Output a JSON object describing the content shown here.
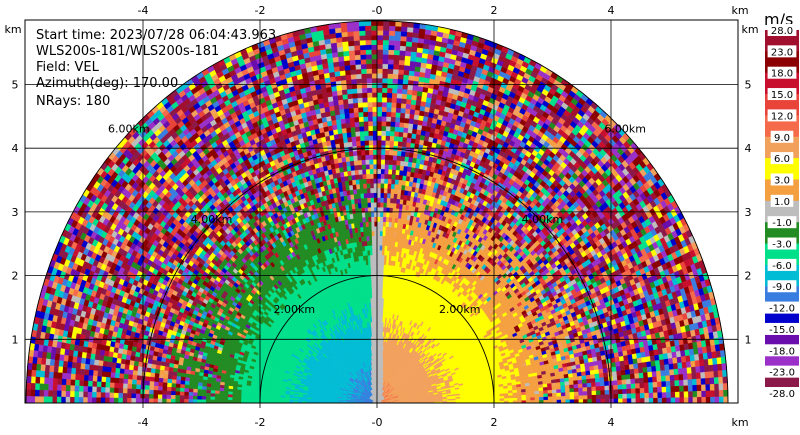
{
  "chart_data": {
    "type": "heatmap",
    "subtype": "radar RHI / sector scan",
    "info": {
      "start_time": "Start time: 2023/07/28 06:04:43.963",
      "site": "WLS200s-181/WLS200s-181",
      "field": "Field: VEL",
      "azimuth": "Azimuth(deg): 170.00",
      "nrays": "NRays: 180"
    },
    "axes": {
      "x_unit": "km",
      "y_unit": "km",
      "xlim": [
        -6,
        6
      ],
      "ylim": [
        0,
        6
      ],
      "x_ticks": [
        -4,
        -2,
        0,
        2,
        4
      ],
      "x_tick_labels": [
        "-4",
        "-2",
        "-0",
        "2",
        "4"
      ],
      "y_ticks": [
        1,
        2,
        3,
        4,
        5
      ],
      "y_tick_labels": [
        "1",
        "2",
        "3",
        "4",
        "5"
      ],
      "grid": true
    },
    "max_range_km": 6.0,
    "range_rings": [
      {
        "range_km": 2,
        "label": "2.00km"
      },
      {
        "range_km": 4,
        "label": "4.00km"
      },
      {
        "range_km": 6,
        "label": "6.00km"
      }
    ],
    "colorbar": {
      "unit": "m/s",
      "boundaries": [
        28.0,
        23.0,
        18.0,
        15.0,
        12.0,
        9.0,
        6.0,
        3.0,
        1.0,
        -1.0,
        -3.0,
        -6.0,
        -9.0,
        -12.0,
        -15.0,
        -18.0,
        -23.0,
        -28.0
      ],
      "labels": [
        "28.0",
        "23.0",
        "18.0",
        "15.0",
        "12.0",
        "9.0",
        "6.0",
        "3.0",
        "1.0",
        "-1.0",
        "-3.0",
        "-6.0",
        "-9.0",
        "-12.0",
        "-15.0",
        "-18.0",
        "-23.0",
        "-28.0"
      ],
      "colors": [
        "#a0102e",
        "#8b0000",
        "#c8102e",
        "#e8443a",
        "#f56a4a",
        "#f2a15c",
        "#ffff00",
        "#f5a040",
        "#bdbdbd",
        "#228b22",
        "#00e08a",
        "#00bcd4",
        "#3a7de0",
        "#0000cd",
        "#6a0dad",
        "#9b30c8",
        "#8b1a4a"
      ]
    },
    "patterns": [
      {
        "region": "near range left (-2 to 0 km)",
        "velocity_band": "-3 to -9 m/s (green / cyan / blue)"
      },
      {
        "region": "near range right (0 to 2 km)",
        "velocity_band": "3 to 9 m/s (orange / yellow)"
      },
      {
        "region": "vertical near 0 km",
        "velocity_band": "-1 to 1 m/s (grey)"
      },
      {
        "region": "beyond ~3 km",
        "velocity_band": "noise (all colors)"
      }
    ]
  }
}
